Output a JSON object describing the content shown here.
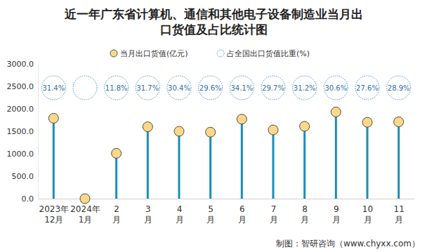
{
  "chart_data": {
    "type": "lollipop",
    "title": "近一年广东省计算机、通信和其他电子设备制造业当月出\n口货值及占比统计图",
    "source": "制图：智研咨询（www.chyxx.com）",
    "categories": [
      "2023年\n12月",
      "2024年\n1月",
      "2\n月",
      "3\n月",
      "4\n月",
      "5\n月",
      "6\n月",
      "7\n月",
      "8\n月",
      "9\n月",
      "10\n月",
      "11\n月"
    ],
    "series": [
      {
        "name": "当月出口货值(亿元)",
        "type": "lollipop",
        "color": "#1b8db9",
        "values": [
          1790,
          0,
          1010,
          1600,
          1500,
          1480,
          1770,
          1530,
          1610,
          1930,
          1700,
          1710
        ]
      },
      {
        "name": "占全国出口货值比重(%)",
        "type": "bubble",
        "color": "#3a8fd0",
        "values": [
          31.4,
          null,
          11.8,
          31.7,
          30.4,
          29.6,
          34.1,
          29.7,
          31.2,
          30.6,
          27.6,
          28.9
        ],
        "value_labels": [
          "31.4%",
          null,
          "11.8%",
          "31.7%",
          "30.4%",
          "29.6%",
          "34.1%",
          "29.7%",
          "31.2%",
          "30.6%",
          "27.6%",
          "28.9%"
        ]
      }
    ],
    "ylim": [
      0,
      3000
    ],
    "yticks": [
      {
        "value": 0,
        "label": "0.0"
      },
      {
        "value": 500,
        "label": "500.0"
      },
      {
        "value": 1000,
        "label": "1000.0"
      },
      {
        "value": 1500,
        "label": "1500.0"
      },
      {
        "value": 2000,
        "label": "2000.0"
      },
      {
        "value": 2500,
        "label": "2500.0"
      },
      {
        "value": 3000,
        "label": "3000.0"
      }
    ],
    "grid": false,
    "legend": "top",
    "data_labels": true
  }
}
